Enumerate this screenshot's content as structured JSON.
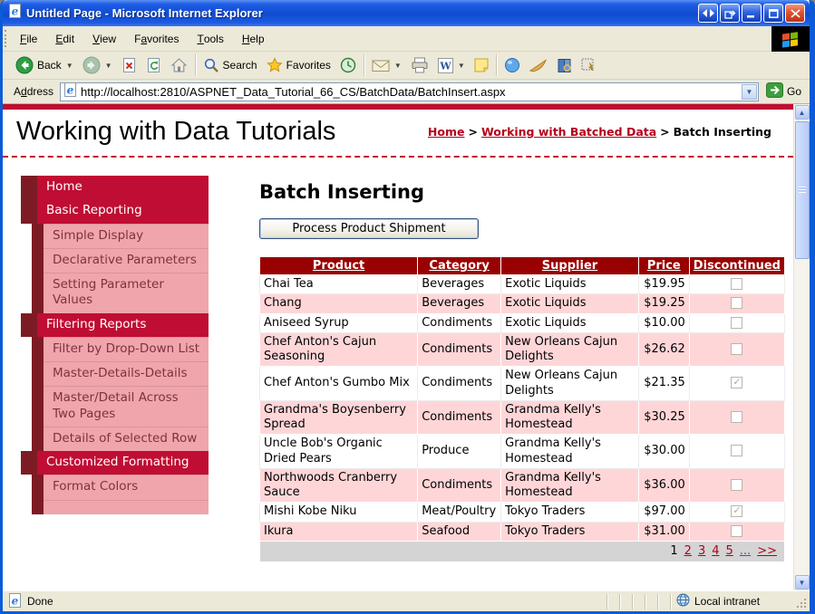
{
  "window": {
    "title": "Untitled Page - Microsoft Internet Explorer",
    "buttons": [
      "pan",
      "popout",
      "minimize",
      "maximize",
      "close"
    ]
  },
  "menu_bar": {
    "items": [
      {
        "label": "File",
        "underline": 0
      },
      {
        "label": "Edit",
        "underline": 0
      },
      {
        "label": "View",
        "underline": 0
      },
      {
        "label": "Favorites",
        "underline": 1
      },
      {
        "label": "Tools",
        "underline": 0
      },
      {
        "label": "Help",
        "underline": 0
      }
    ]
  },
  "toolbar": {
    "buttons": [
      {
        "icon": "back",
        "label": "Back",
        "caret": true
      },
      {
        "icon": "forward",
        "caret": true
      },
      {
        "icon": "stop"
      },
      {
        "icon": "refresh"
      },
      {
        "icon": "home"
      },
      {
        "sep": true
      },
      {
        "icon": "search",
        "label": "Search"
      },
      {
        "icon": "favorites",
        "label": "Favorites"
      },
      {
        "icon": "history"
      },
      {
        "sep": true
      },
      {
        "icon": "mail",
        "caret": true
      },
      {
        "icon": "print"
      },
      {
        "icon": "word",
        "caret": true
      },
      {
        "icon": "notes"
      },
      {
        "sep": true
      },
      {
        "icon": "messenger"
      },
      {
        "icon": "swoosh"
      },
      {
        "icon": "research"
      },
      {
        "icon": "gridtool"
      }
    ]
  },
  "address_bar": {
    "label": "Address",
    "underline": 1,
    "url": "http://localhost:2810/ASPNET_Data_Tutorial_66_CS/BatchData/BatchInsert.aspx",
    "go_label": "Go"
  },
  "page": {
    "site_title": "Working with Data Tutorials",
    "breadcrumb": {
      "separator": ">",
      "items": [
        {
          "label": "Home",
          "link": true
        },
        {
          "label": "Working with Batched Data",
          "link": true
        },
        {
          "label": "Batch Inserting",
          "link": false
        }
      ]
    },
    "sidebar": {
      "items": [
        {
          "label": "Home",
          "level": 1
        },
        {
          "label": "Basic Reporting",
          "level": 1
        },
        {
          "label": "Simple Display",
          "level": 2
        },
        {
          "label": "Declarative Parameters",
          "level": 2
        },
        {
          "label": "Setting Parameter Values",
          "level": 2
        },
        {
          "label": "Filtering Reports",
          "level": 1
        },
        {
          "label": "Filter by Drop-Down List",
          "level": 2
        },
        {
          "label": "Master-Details-Details",
          "level": 2
        },
        {
          "label": "Master/Detail Across Two Pages",
          "level": 2
        },
        {
          "label": "Details of Selected Row",
          "level": 2
        },
        {
          "label": "Customized Formatting",
          "level": 1
        },
        {
          "label": "Format Colors",
          "level": 2
        }
      ]
    },
    "main": {
      "heading": "Batch Inserting",
      "button_label": "Process Product Shipment",
      "table": {
        "headers": [
          "Product",
          "Category",
          "Supplier",
          "Price",
          "Discontinued"
        ],
        "rows": [
          {
            "product": "Chai Tea",
            "category": "Beverages",
            "supplier": "Exotic Liquids",
            "price": "$19.95",
            "discontinued": false
          },
          {
            "product": "Chang",
            "category": "Beverages",
            "supplier": "Exotic Liquids",
            "price": "$19.25",
            "discontinued": false
          },
          {
            "product": "Aniseed Syrup",
            "category": "Condiments",
            "supplier": "Exotic Liquids",
            "price": "$10.00",
            "discontinued": false
          },
          {
            "product": "Chef Anton's Cajun Seasoning",
            "category": "Condiments",
            "supplier": "New Orleans Cajun Delights",
            "price": "$26.62",
            "discontinued": false
          },
          {
            "product": "Chef Anton's Gumbo Mix",
            "category": "Condiments",
            "supplier": "New Orleans Cajun Delights",
            "price": "$21.35",
            "discontinued": true
          },
          {
            "product": "Grandma's Boysenberry Spread",
            "category": "Condiments",
            "supplier": "Grandma Kelly's Homestead",
            "price": "$30.25",
            "discontinued": false
          },
          {
            "product": "Uncle Bob's Organic Dried Pears",
            "category": "Produce",
            "supplier": "Grandma Kelly's Homestead",
            "price": "$30.00",
            "discontinued": false
          },
          {
            "product": "Northwoods Cranberry Sauce",
            "category": "Condiments",
            "supplier": "Grandma Kelly's Homestead",
            "price": "$36.00",
            "discontinued": false
          },
          {
            "product": "Mishi Kobe Niku",
            "category": "Meat/Poultry",
            "supplier": "Tokyo Traders",
            "price": "$97.00",
            "discontinued": true
          },
          {
            "product": "Ikura",
            "category": "Seafood",
            "supplier": "Tokyo Traders",
            "price": "$31.00",
            "discontinued": false
          }
        ],
        "pager": {
          "current": "1",
          "pages": [
            "2",
            "3",
            "4",
            "5"
          ],
          "ellipsis": "...",
          "next": ">>"
        }
      }
    }
  },
  "status_bar": {
    "text": "Done",
    "zone": "Local intranet"
  },
  "colors": {
    "title_blue": "#1459D6",
    "chrome": "#ECE9D8",
    "crimson": "#C00D33",
    "maroon": "#7D1B24",
    "pink": "#EFA5AB",
    "pink_text": "#7E333C",
    "dark_red": "#990000",
    "row_pink": "#FFD6D8",
    "pager_gray": "#D4D4D4",
    "link_red": "#B3001B",
    "dots_blue": "#3E53C0"
  }
}
